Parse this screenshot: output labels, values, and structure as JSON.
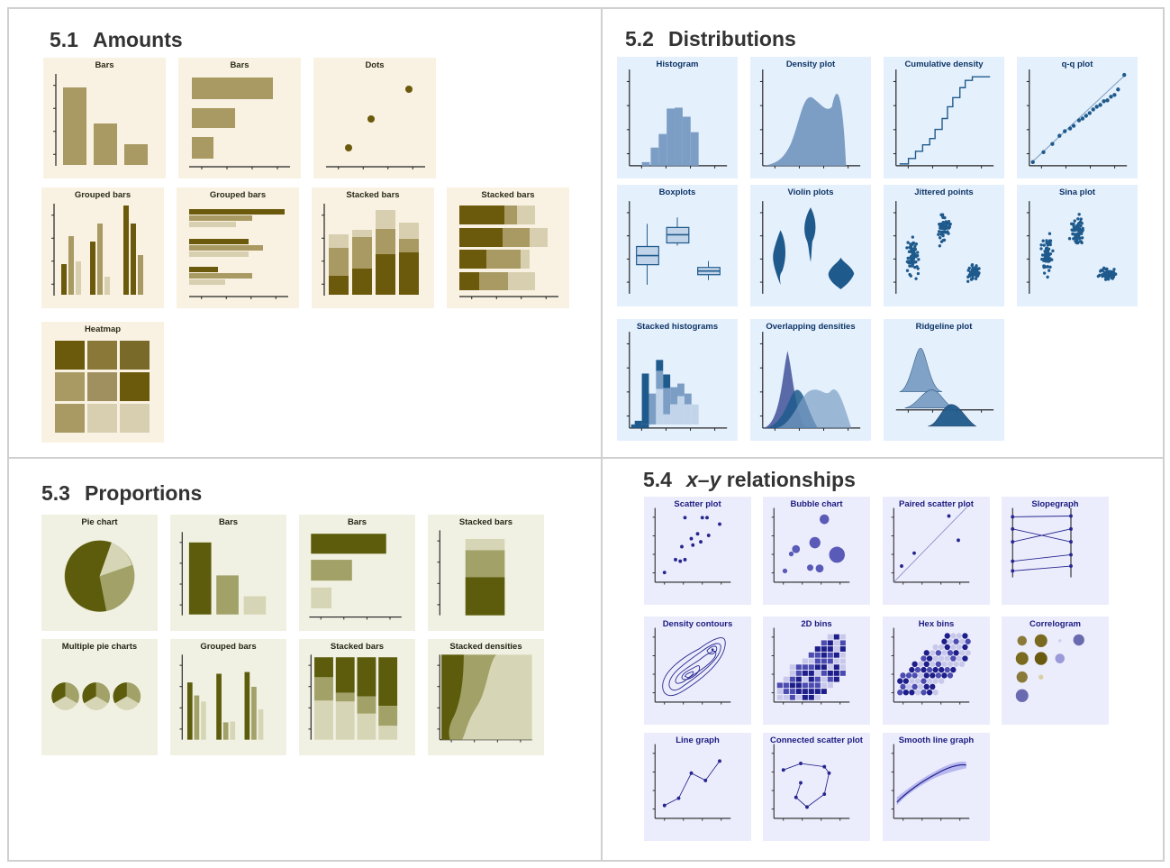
{
  "sections": {
    "amounts": {
      "number": "5.1",
      "title": "Amounts"
    },
    "distributions": {
      "number": "5.2",
      "title": "Distributions"
    },
    "proportions": {
      "number": "5.3",
      "title": "Proportions"
    },
    "xy": {
      "number": "5.4",
      "title_prefix": "x–y",
      "title_suffix": " relationships"
    }
  },
  "amounts": {
    "cards": [
      "Bars",
      "Bars",
      "Dots",
      "Grouped bars",
      "Grouped bars",
      "Stacked bars",
      "Stacked bars",
      "Heatmap"
    ]
  },
  "distributions": {
    "cards": [
      "Histogram",
      "Density plot",
      "Cumulative density",
      "q-q plot",
      "Boxplots",
      "Violin plots",
      "Jittered points",
      "Sina plot",
      "Stacked histograms",
      "Overlapping densities",
      "Ridgeline plot"
    ]
  },
  "proportions": {
    "cards": [
      "Pie chart",
      "Bars",
      "Bars",
      "Stacked bars",
      "Multiple pie charts",
      "Grouped bars",
      "Stacked bars",
      "Stacked densities"
    ]
  },
  "xy": {
    "cards": [
      "Scatter plot",
      "Bubble chart",
      "Paired scatter plot",
      "Slopegraph",
      "Density contours",
      "2D bins",
      "Hex bins",
      "Correlogram",
      "Line graph",
      "Connected scatter plot",
      "Smooth line graph"
    ]
  },
  "colors": {
    "amounts_bg": "#f9f2e2",
    "amounts_dark": "#6b5a0c",
    "amounts_mid": "#a89a62",
    "amounts_light": "#d8cfb0",
    "dist_bg": "#e5f0fd",
    "dist_dark": "#1f5a8c",
    "dist_mid": "#7c9ec5",
    "dist_light": "#c2d4ea",
    "prop_bg": "#f1f1e3",
    "prop_dark": "#5c5c0c",
    "prop_mid": "#a1a168",
    "prop_light": "#d6d6b6",
    "xy_bg": "#ecedfc",
    "xy_dark": "#26268f",
    "xy_mid": "#5a5ab8"
  }
}
